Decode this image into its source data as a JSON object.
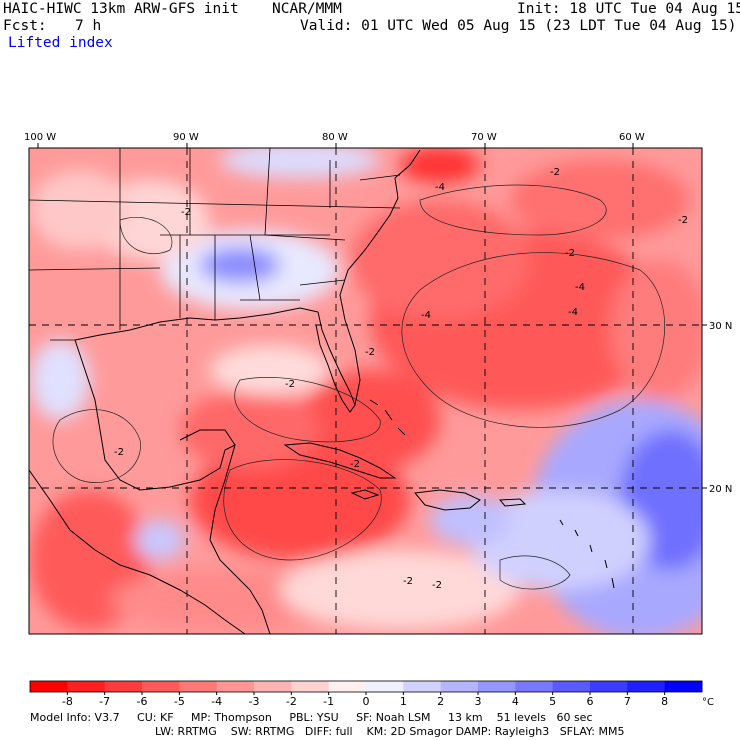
{
  "header": {
    "model_title": "HAIC-HIWC 13km ARW-GFS init",
    "center": "NCAR/MMM",
    "init_time": "Init: 18 UTC Tue 04 Aug 15",
    "forecast_label": "Fcst:",
    "forecast_hours": "7 h",
    "valid_time": "Valid: 01 UTC Wed 05 Aug 15 (23 LDT Tue 04 Aug 15)",
    "field_name": "Lifted index"
  },
  "map": {
    "lon_labels": [
      "100 W",
      "90 W",
      "80 W",
      "70 W",
      "60 W"
    ],
    "lat_labels": [
      "30 N",
      "20 N"
    ],
    "contour_labels": [
      "-2",
      "-4",
      "-2",
      "-2",
      "-4",
      "-2",
      "-4",
      "-2",
      "-2",
      "-4",
      "-2",
      "-2",
      "-2",
      "-2"
    ]
  },
  "colorbar": {
    "unit": "°C",
    "ticks": [
      "-8",
      "-7",
      "-6",
      "-5",
      "-4",
      "-3",
      "-2",
      "-1",
      "0",
      "1",
      "2",
      "3",
      "4",
      "5",
      "6",
      "7",
      "8"
    ],
    "colors": [
      "#ff0000",
      "#ff2020",
      "#ff3c3c",
      "#ff5a5a",
      "#ff7878",
      "#ff9696",
      "#ffb4b4",
      "#ffd2d2",
      "#fff0f0",
      "#f0f0ff",
      "#d2d2ff",
      "#b4b4ff",
      "#9696ff",
      "#7878ff",
      "#5a5aff",
      "#3c3cff",
      "#2020ff",
      "#0000ff"
    ]
  },
  "footer": {
    "line1": "Model Info: V3.7     CU: KF     MP: Thompson     PBL: YSU     SF: Noah LSM     13 km    51 levels   60 sec",
    "line2": "LW: RRTMG    SW: RRTMG   DIFF: full    KM: 2D Smagor DAMP: Rayleigh3   SFLAY: MM5"
  }
}
